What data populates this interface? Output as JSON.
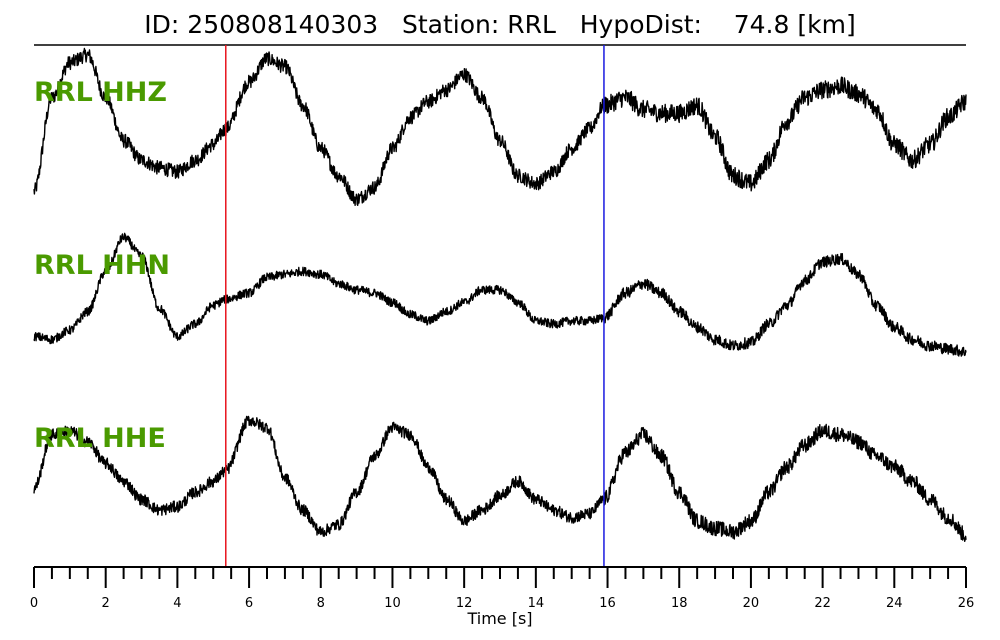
{
  "title": "ID: 250808140303   Station: RRL   HypoDist:    74.8 [km]",
  "colors": {
    "trace": "#000000",
    "label": "#4a9a00",
    "p_pick": "#e8141e",
    "s_pick": "#1a1ae0",
    "axis": "#000000"
  },
  "chart_data": {
    "type": "line",
    "title": "ID: 250808140303   Station: RRL   HypoDist:    74.8 [km]",
    "xlabel": "Time [s]",
    "xlim": [
      0,
      26
    ],
    "x_ticks": [
      0,
      2,
      4,
      6,
      8,
      10,
      12,
      14,
      16,
      18,
      20,
      22,
      24,
      26
    ],
    "minor_tick_step": 0.5,
    "p_pick_time": 5.35,
    "s_pick_time": 15.9,
    "series": [
      {
        "name": "RRL HHZ",
        "x": [
          0,
          0.5,
          1.0,
          1.5,
          2.0,
          2.5,
          3.0,
          3.5,
          4.0,
          4.5,
          5.0,
          5.35,
          6.0,
          6.5,
          7.0,
          7.5,
          8.0,
          8.5,
          9.0,
          9.5,
          10.0,
          10.5,
          11.0,
          11.5,
          12.0,
          12.5,
          13.0,
          13.5,
          14.0,
          14.5,
          15.0,
          15.5,
          15.9,
          16.5,
          17.0,
          17.5,
          18.0,
          18.5,
          19.0,
          19.5,
          20.0,
          20.5,
          21.0,
          21.5,
          22.0,
          22.5,
          23.0,
          23.5,
          24.0,
          24.5,
          25.0,
          25.5,
          26.0
        ],
        "values": [
          -0.85,
          0.35,
          0.8,
          0.9,
          0.35,
          -0.2,
          -0.45,
          -0.55,
          -0.6,
          -0.45,
          -0.25,
          -0.05,
          0.55,
          0.85,
          0.75,
          0.25,
          -0.3,
          -0.65,
          -0.95,
          -0.8,
          -0.3,
          0.1,
          0.3,
          0.45,
          0.65,
          0.35,
          -0.2,
          -0.65,
          -0.75,
          -0.6,
          -0.3,
          -0.05,
          0.25,
          0.35,
          0.2,
          0.15,
          0.15,
          0.25,
          -0.15,
          -0.65,
          -0.75,
          -0.45,
          0.05,
          0.35,
          0.45,
          0.5,
          0.4,
          0.2,
          -0.25,
          -0.45,
          -0.25,
          0.1,
          0.3
        ],
        "noise": 0.09
      },
      {
        "name": "RRL HHN",
        "x": [
          0,
          0.5,
          1.0,
          1.5,
          2.0,
          2.5,
          3.0,
          3.5,
          4.0,
          4.5,
          5.0,
          5.35,
          6.0,
          6.5,
          7.0,
          7.5,
          8.0,
          8.5,
          9.0,
          9.5,
          10.0,
          10.5,
          11.0,
          11.5,
          12.0,
          12.5,
          13.0,
          13.5,
          14.0,
          14.5,
          15.0,
          15.5,
          15.9,
          16.5,
          17.0,
          17.5,
          18.0,
          18.5,
          19.0,
          19.5,
          20.0,
          20.5,
          21.0,
          21.5,
          22.0,
          22.5,
          23.0,
          23.5,
          24.0,
          24.5,
          25.0,
          25.5,
          26.0
        ],
        "values": [
          -0.7,
          -0.75,
          -0.6,
          -0.3,
          0.35,
          0.9,
          0.6,
          -0.25,
          -0.7,
          -0.5,
          -0.2,
          -0.1,
          0.0,
          0.25,
          0.3,
          0.35,
          0.3,
          0.15,
          0.05,
          0.0,
          -0.15,
          -0.35,
          -0.45,
          -0.3,
          -0.15,
          0.05,
          0.05,
          -0.15,
          -0.45,
          -0.5,
          -0.45,
          -0.45,
          -0.4,
          0.0,
          0.15,
          0.0,
          -0.3,
          -0.55,
          -0.75,
          -0.85,
          -0.8,
          -0.5,
          -0.2,
          0.2,
          0.5,
          0.55,
          0.3,
          -0.2,
          -0.55,
          -0.75,
          -0.85,
          -0.9,
          -0.95
        ],
        "noise": 0.07
      },
      {
        "name": "RRL HHE",
        "x": [
          0,
          0.5,
          1.0,
          1.5,
          2.0,
          2.5,
          3.0,
          3.5,
          4.0,
          4.5,
          5.0,
          5.35,
          6.0,
          6.5,
          7.0,
          7.5,
          8.0,
          8.5,
          9.0,
          9.5,
          10.0,
          10.5,
          11.0,
          11.5,
          12.0,
          12.5,
          13.0,
          13.5,
          14.0,
          14.5,
          15.0,
          15.5,
          15.9,
          16.5,
          17.0,
          17.5,
          18.0,
          18.5,
          19.0,
          19.5,
          20.0,
          20.5,
          21.0,
          21.5,
          22.0,
          22.5,
          23.0,
          23.5,
          24.0,
          24.5,
          25.0,
          25.5,
          26.0
        ],
        "values": [
          -0.3,
          0.45,
          0.5,
          0.35,
          0.05,
          -0.2,
          -0.45,
          -0.6,
          -0.55,
          -0.35,
          -0.2,
          -0.05,
          0.65,
          0.55,
          -0.15,
          -0.6,
          -0.9,
          -0.8,
          -0.35,
          0.15,
          0.55,
          0.45,
          0.0,
          -0.45,
          -0.75,
          -0.6,
          -0.4,
          -0.2,
          -0.45,
          -0.6,
          -0.7,
          -0.65,
          -0.45,
          0.2,
          0.45,
          0.15,
          -0.35,
          -0.75,
          -0.85,
          -0.9,
          -0.75,
          -0.35,
          0.0,
          0.3,
          0.5,
          0.45,
          0.35,
          0.15,
          0.0,
          -0.2,
          -0.45,
          -0.7,
          -0.95
        ],
        "noise": 0.08
      }
    ]
  }
}
